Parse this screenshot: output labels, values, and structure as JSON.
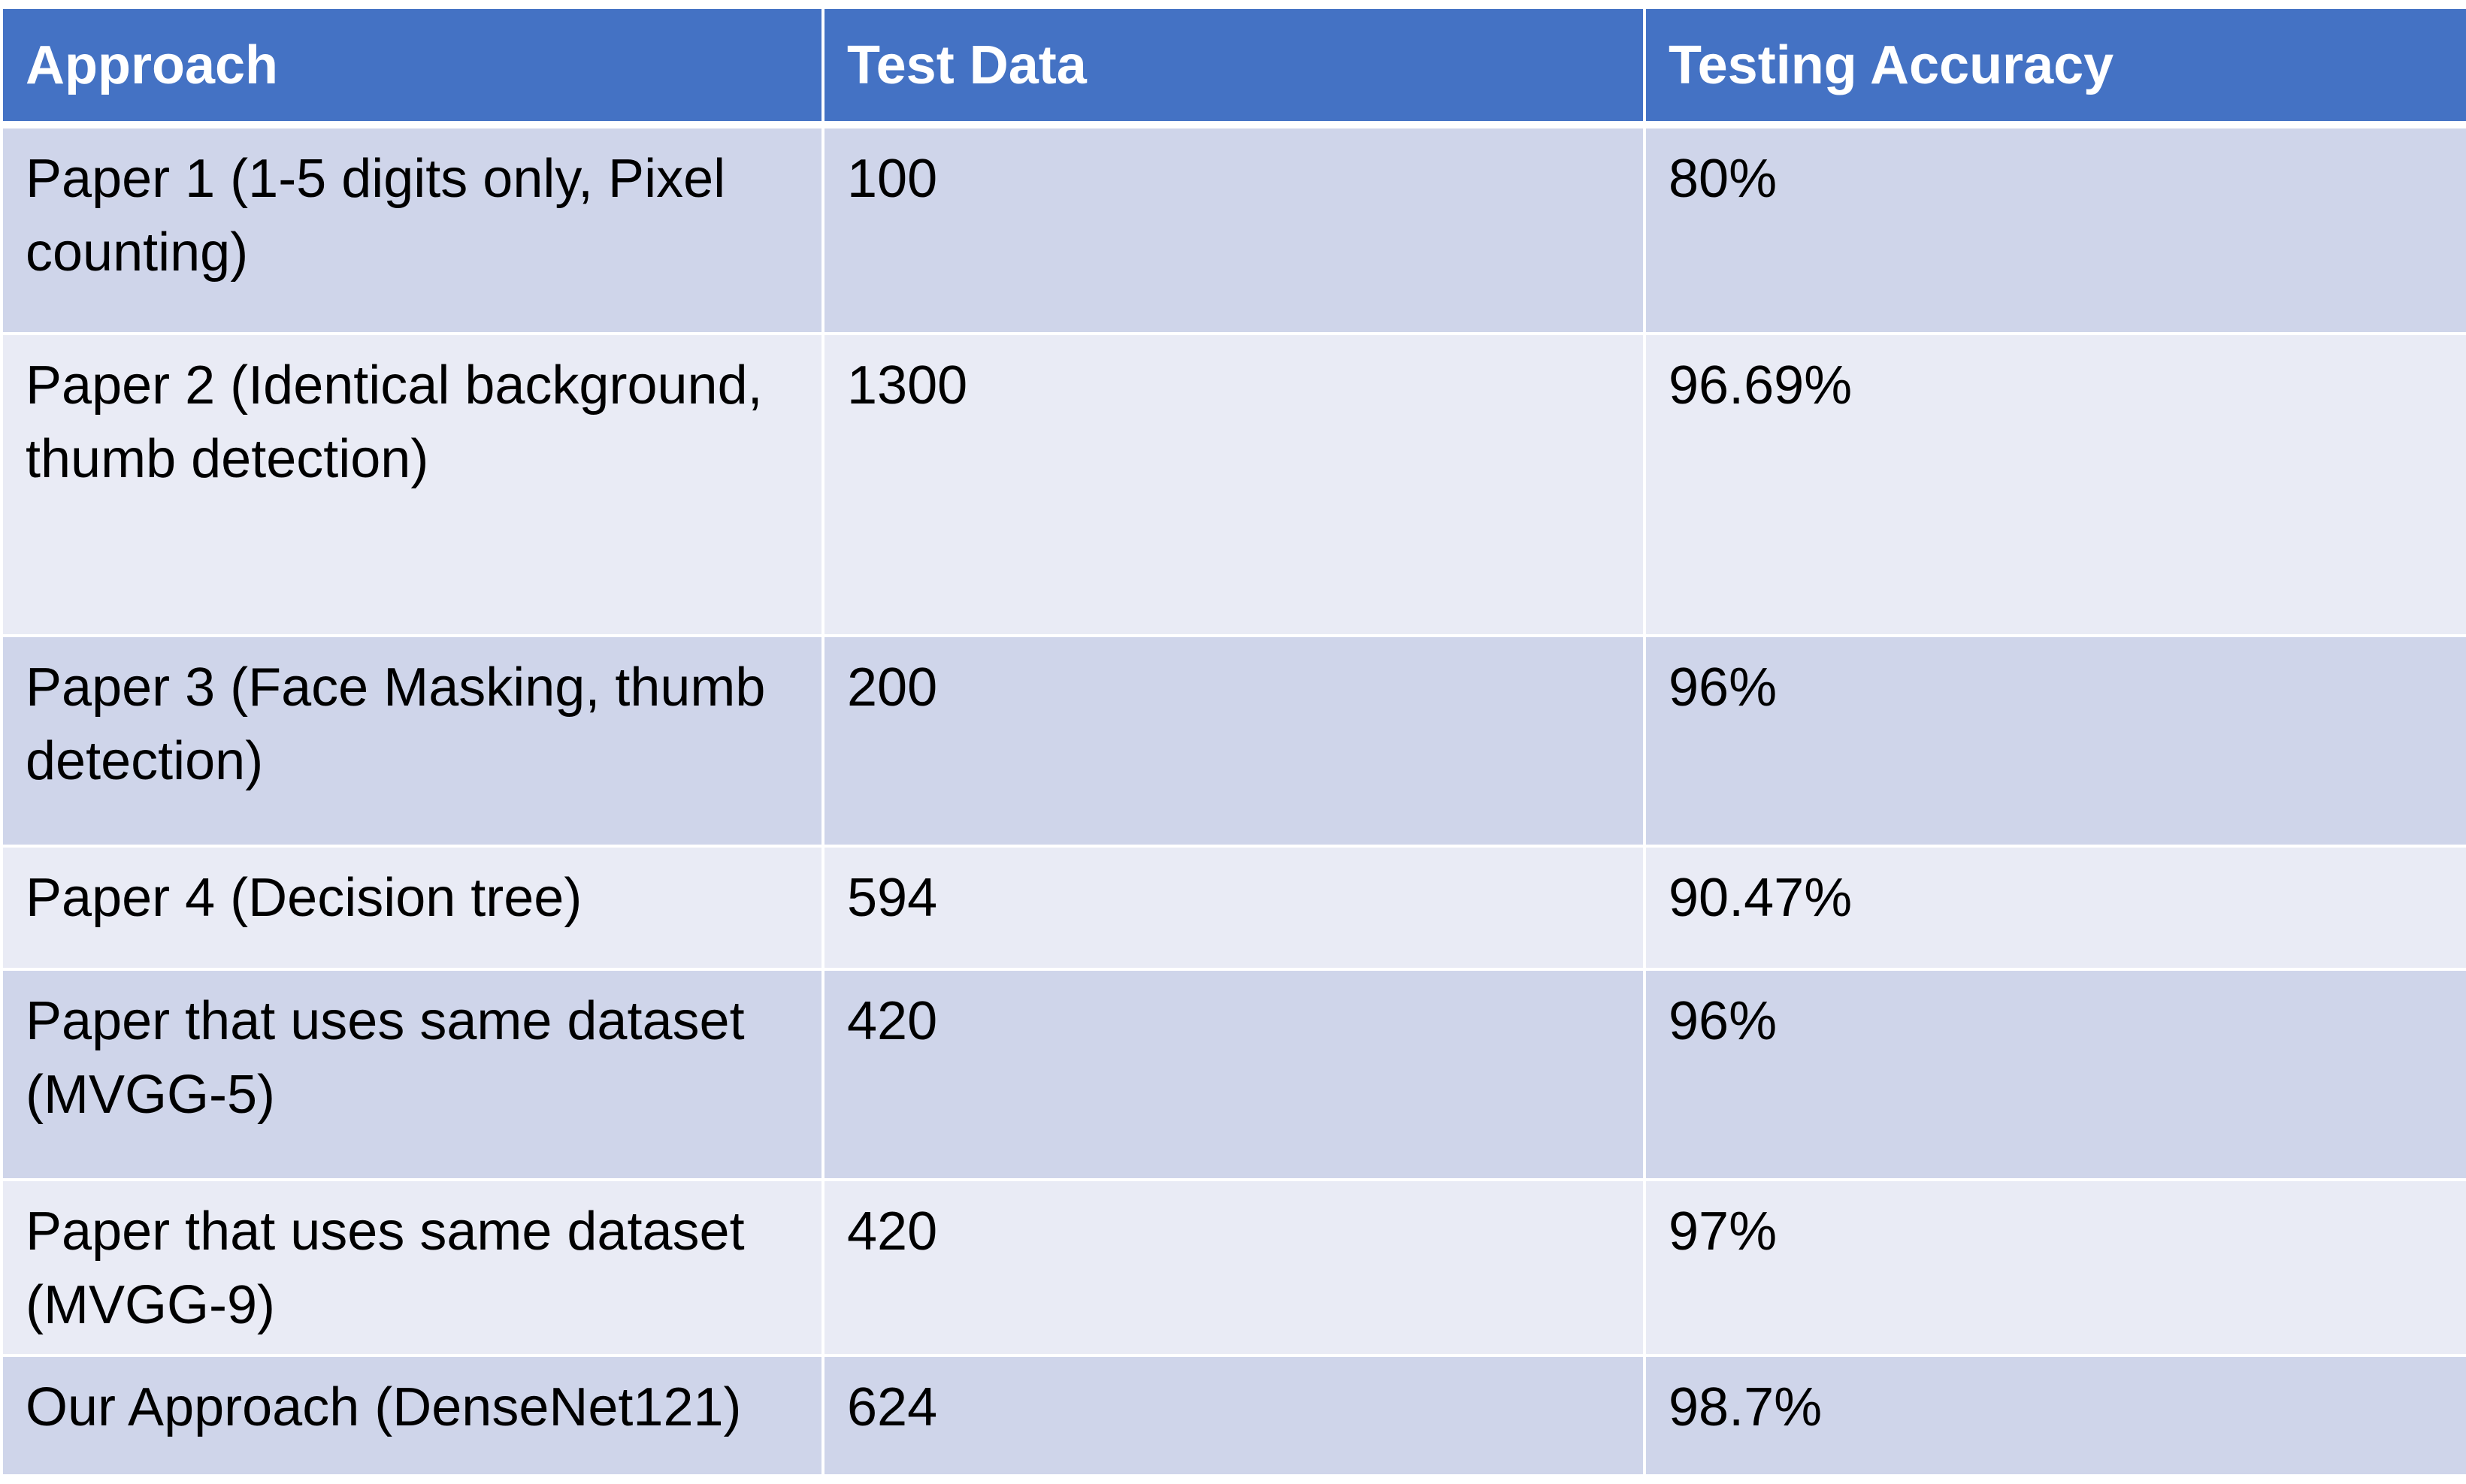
{
  "table": {
    "headers": [
      "Approach",
      "Test Data",
      "Testing Accuracy"
    ],
    "rows": [
      [
        "Paper 1 (1-5 digits only, Pixel counting)",
        "100",
        "80%"
      ],
      [
        "Paper 2 (Identical background, thumb detection)",
        "1300",
        "96.69%"
      ],
      [
        "Paper 3 (Face Masking, thumb detection)",
        "200",
        "96%"
      ],
      [
        "Paper 4 (Decision tree)",
        "594",
        "90.47%"
      ],
      [
        "Paper that uses same dataset (MVGG-5)",
        "420",
        "96%"
      ],
      [
        "Paper that uses same dataset (MVGG-9)",
        "420",
        "97%"
      ],
      [
        "Our Approach (DenseNet121)",
        "624",
        "98.7%"
      ]
    ]
  },
  "colors": {
    "header_bg": "#4472c4",
    "row_odd_bg": "#cfd5ea",
    "row_even_bg": "#e9ebf5",
    "header_text": "#ffffff",
    "body_text": "#000000"
  }
}
